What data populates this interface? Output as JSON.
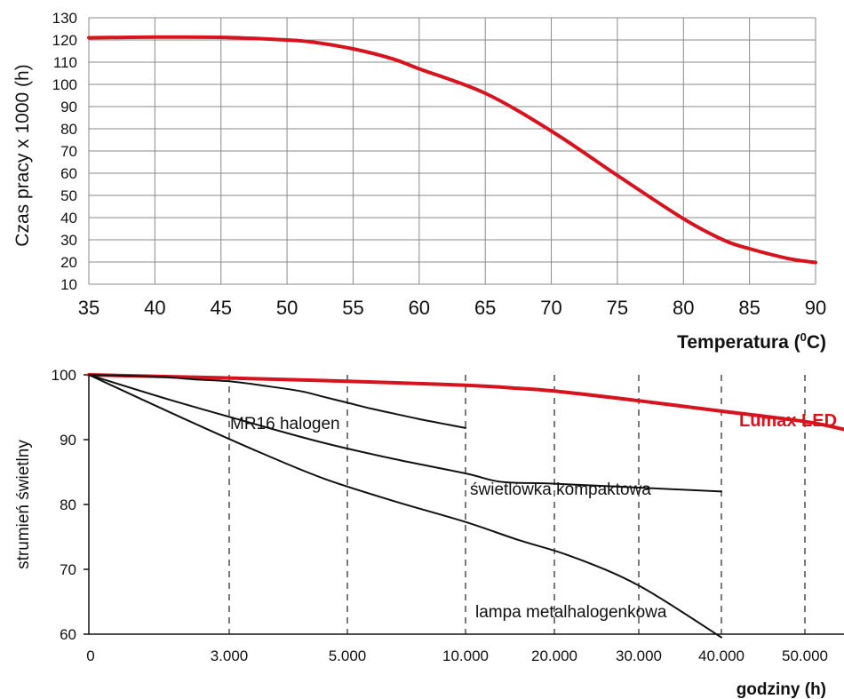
{
  "chart_data": [
    {
      "type": "line",
      "title": "",
      "xlabel": "Temperatura (°C)",
      "xlabel_main": "Temperatura (",
      "xlabel_sup": "0",
      "xlabel_end": "C)",
      "ylabel": "Czas pracy x 1000 (h)",
      "xlim": [
        35,
        90
      ],
      "ylim": [
        10,
        130
      ],
      "x_ticks": [
        35,
        40,
        45,
        50,
        55,
        60,
        65,
        70,
        75,
        80,
        85,
        90
      ],
      "y_ticks": [
        10,
        20,
        30,
        40,
        50,
        60,
        70,
        80,
        90,
        100,
        110,
        120,
        130
      ],
      "grid": true,
      "series": [
        {
          "color": "#d7141e",
          "x": [
            35,
            40,
            45,
            50,
            52,
            55,
            58,
            60,
            65,
            70,
            75,
            80,
            83,
            85,
            88,
            90
          ],
          "y": [
            121,
            121.3,
            121.2,
            120,
            119,
            116,
            111.5,
            107,
            96,
            79,
            59,
            39.5,
            30,
            26,
            21.5,
            19.8
          ]
        }
      ]
    },
    {
      "type": "line",
      "title": "",
      "xlabel": "godziny (h)",
      "ylabel": "strumień świetlny",
      "ylim": [
        60,
        100
      ],
      "x_ticks": [
        "0",
        "3.000",
        "5.000",
        "10.000",
        "20.000",
        "30.000",
        "40.000",
        "50.000"
      ],
      "y_ticks": [
        60,
        70,
        80,
        90,
        100
      ],
      "grid": "dashed vertical",
      "series": [
        {
          "name": "Lumax LED",
          "color": "#d7141e",
          "x": [
            0,
            1,
            2,
            3,
            3.5,
            4,
            5,
            6,
            7,
            7.5
          ],
          "y": [
            100,
            99.5,
            99,
            98.4,
            98,
            97.5,
            96,
            94.4,
            92.8,
            91.5
          ]
        },
        {
          "name": "MR16 halogen",
          "color": "#111111",
          "x": [
            0,
            0.5,
            0.75,
            1,
            1.3,
            1.6,
            1.8,
            2,
            2.2,
            2.4,
            2.6,
            2.8,
            3
          ],
          "y": [
            100,
            99.7,
            99.3,
            99,
            98.3,
            97.5,
            96.6,
            95.7,
            94.8,
            94,
            93.2,
            92.5,
            91.8
          ]
        },
        {
          "name": "świetlówka kompaktowa",
          "color": "#111111",
          "x": [
            0,
            0.6,
            1.2,
            1.8,
            2.4,
            3,
            3.4,
            4,
            5,
            6
          ],
          "y": [
            100,
            96,
            92.5,
            89.5,
            87,
            84.8,
            83.5,
            83.2,
            82.6,
            82
          ]
        },
        {
          "name": "lampa metalhalogenkowa",
          "color": "#111111",
          "x": [
            0,
            0.6,
            1.2,
            1.8,
            2.4,
            3,
            3.6,
            4.2,
            5,
            6
          ],
          "y": [
            100,
            94,
            88.5,
            84,
            80.5,
            77.3,
            74.5,
            72,
            67.5,
            59.5
          ]
        }
      ]
    }
  ]
}
